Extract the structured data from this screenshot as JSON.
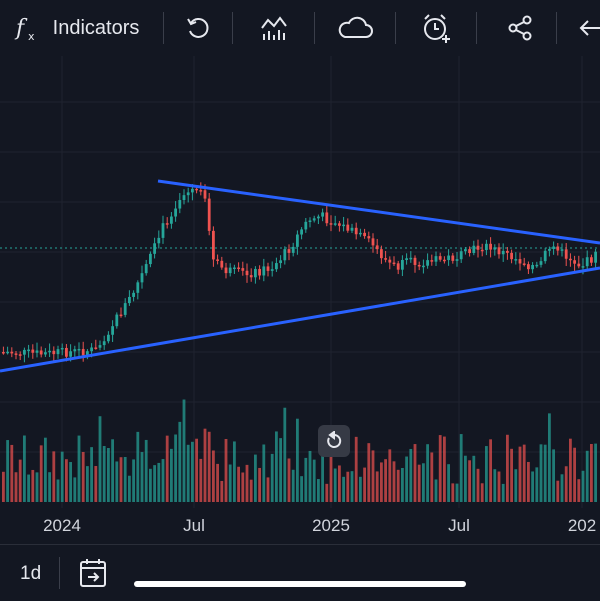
{
  "toolbar": {
    "indicators_label": "Indicators",
    "icons": [
      "function-icon",
      "undo-icon",
      "chart-type-icon",
      "cloud-icon",
      "alert-add-icon",
      "share-icon",
      "back-arrow-icon"
    ]
  },
  "time_axis": {
    "ticks": [
      "2024",
      "Jul",
      "2025",
      "Jul",
      "202"
    ]
  },
  "bottom": {
    "interval": "1d"
  },
  "colors": {
    "background": "#131722",
    "up": "#26a69a",
    "down": "#ef5350",
    "trendline": "#2962ff",
    "price_line": "#26a69a"
  },
  "chart_data": {
    "type": "candlestick",
    "pattern": "symmetrical triangle",
    "x_range": [
      "2023-10",
      "2026-01"
    ],
    "trendlines": [
      {
        "name": "",
        "from": "2024-05",
        "to": "2026-01",
        "direction": "down"
      },
      {
        "name": "",
        "from": "2023-10",
        "to": "2026-01",
        "direction": "up"
      }
    ],
    "volume": true,
    "grid": true
  }
}
